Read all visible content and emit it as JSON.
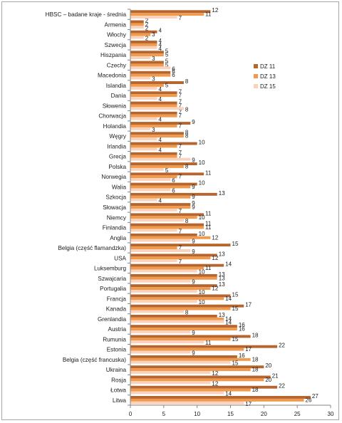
{
  "chart_data": {
    "type": "bar",
    "orientation": "horizontal",
    "title": "",
    "xlabel": "",
    "ylabel": "",
    "xlim": [
      0,
      30
    ],
    "xticks": [
      0,
      5,
      10,
      15,
      20,
      25,
      30
    ],
    "grid": false,
    "legend_position": "right",
    "categories": [
      "HBSC – badane kraje - średnia",
      "Armenia",
      "Włochy",
      "Szwecja",
      "Hiszpania",
      "Czechy",
      "Macedonia",
      "Islandia",
      "Dania",
      "Słowenia",
      "Chorwacja",
      "Holandia",
      "Węgry",
      "Irlandia",
      "Grecja",
      "Polska",
      "Norwegia",
      "Walia",
      "Szkocja",
      "Słowacja",
      "Niemcy",
      "Finlandia",
      "Anglia",
      "Belgia (część flamandzka)",
      "USA",
      "Luksemburg",
      "Szwajcaria",
      "Portugalia",
      "Francja",
      "Kanada",
      "Grenlandia",
      "Austria",
      "Rumunia",
      "Estonia",
      "Belgia (część francuska)",
      "Ukraina",
      "Rosja",
      "Łotwa",
      "Litwa"
    ],
    "series": [
      {
        "name": "DZ 11",
        "color": "#b5652d",
        "values": [
          12,
          2,
          4,
          4,
          5,
          5,
          6,
          8,
          7,
          7,
          7,
          9,
          8,
          10,
          7,
          10,
          11,
          10,
          13,
          9,
          11,
          11,
          10,
          15,
          13,
          14,
          13,
          13,
          15,
          17,
          13,
          16,
          18,
          22,
          16,
          20,
          21,
          22,
          27
        ]
      },
      {
        "name": "DZ 13",
        "color": "#f09a4e",
        "values": [
          11,
          2,
          3,
          4,
          5,
          5,
          6,
          5,
          7,
          7,
          7,
          7,
          8,
          7,
          7,
          8,
          7,
          9,
          9,
          9,
          10,
          11,
          12,
          7,
          12,
          11,
          13,
          12,
          14,
          15,
          14,
          16,
          15,
          17,
          18,
          18,
          20,
          18,
          26
        ]
      },
      {
        "name": "DZ 15",
        "color": "#fbd3bc",
        "values": [
          7,
          2,
          2,
          4,
          3,
          6,
          3,
          4,
          4,
          8,
          4,
          3,
          4,
          4,
          9,
          5,
          6,
          6,
          4,
          7,
          8,
          7,
          9,
          9,
          7,
          10,
          9,
          10,
          10,
          8,
          14,
          9,
          11,
          9,
          15,
          12,
          12,
          14,
          17
        ]
      }
    ]
  }
}
